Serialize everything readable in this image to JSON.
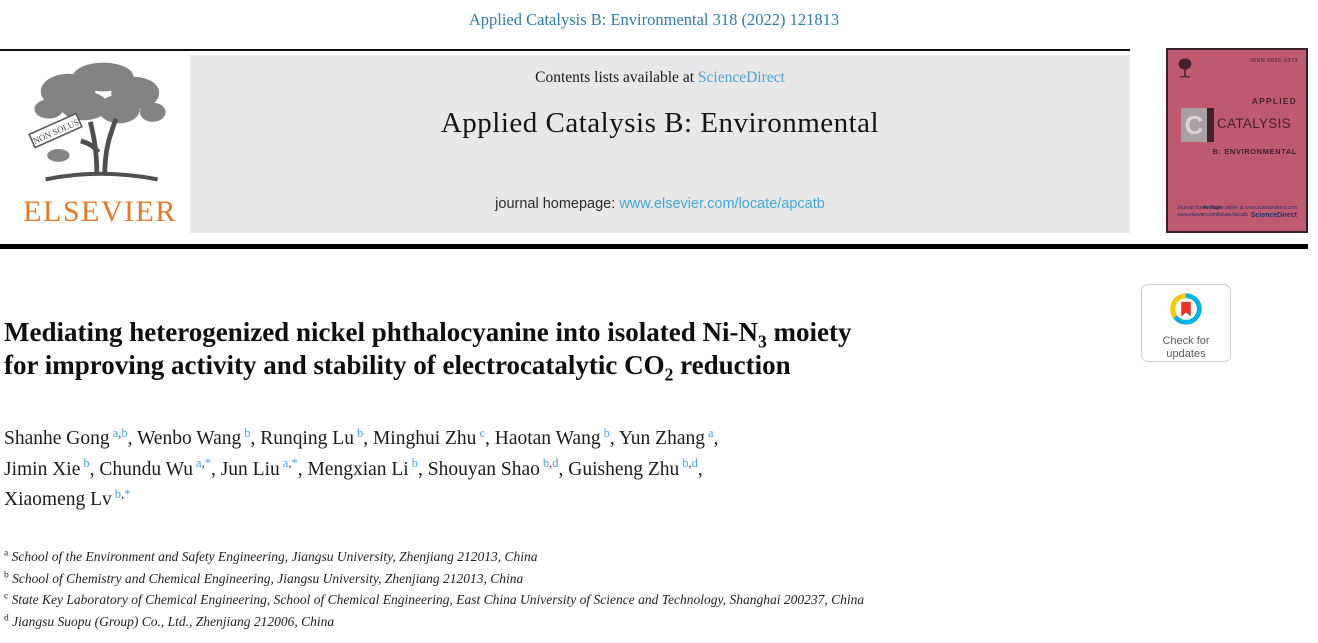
{
  "colors": {
    "citation_teal": "#2e7ea3",
    "link_blue": "#45a5dc",
    "elsevier_orange": "#e87722",
    "cover_bg": "#bf5a71",
    "cover_ink": "#42212c",
    "header_gray": "#e9e8e8",
    "rule_black": "#000000"
  },
  "page": {
    "citation": "Applied Catalysis B: Environmental 318 (2022) 121813"
  },
  "header": {
    "contents_prefix": "Contents lists available at ",
    "sciencedirect_link": "ScienceDirect",
    "journal_title": "Applied Catalysis B: Environmental",
    "homepage_prefix": "journal homepage: ",
    "homepage_url": "www.elsevier.com/locate/apcatb",
    "elsevier_wordmark": "ELSEVIER",
    "logo_banner": "NON SOLUS"
  },
  "cover": {
    "issn": "ISSN 0926-3373",
    "applied": "APPLIED",
    "letter": "C",
    "title": "CATALYSIS",
    "subtitle": "B: ENVIRONMENTAL",
    "homepage_label": "Journal Home Page:",
    "homepage_url": "www.elsevier.com/locate/apcatb",
    "available_online": "Available online at www.sciencedirect.com",
    "sciencedirect": "ScienceDirect"
  },
  "badge": {
    "line1": "Check for",
    "line2": "updates"
  },
  "article": {
    "title_segments": [
      {
        "t": "Mediating heterogenized nickel phthalocyanine into isolated Ni-N"
      },
      {
        "sub": "3"
      },
      {
        "t": " moiety"
      },
      {
        "br": true
      },
      {
        "t": "for improving activity and stability of electrocatalytic CO"
      },
      {
        "sub": "2"
      },
      {
        "t": " reduction"
      }
    ],
    "authors": [
      {
        "name": "Shanhe Gong",
        "sup": "a,b"
      },
      {
        "name": "Wenbo Wang",
        "sup": "b"
      },
      {
        "name": "Runqing Lu",
        "sup": "b"
      },
      {
        "name": "Minghui Zhu",
        "sup": "c"
      },
      {
        "name": "Haotan Wang",
        "sup": "b"
      },
      {
        "name": "Yun Zhang",
        "sup": "a",
        "br": true
      },
      {
        "name": "Jimin Xie",
        "sup": "b"
      },
      {
        "name": "Chundu Wu",
        "sup": "a,*"
      },
      {
        "name": "Jun Liu",
        "sup": "a,*"
      },
      {
        "name": "Mengxian Li",
        "sup": "b"
      },
      {
        "name": "Shouyan Shao",
        "sup": "b,d"
      },
      {
        "name": "Guisheng Zhu",
        "sup": "b,d",
        "br": true
      },
      {
        "name": "Xiaomeng Lv",
        "sup": "b,*"
      }
    ],
    "affiliations": [
      {
        "sup": "a",
        "text": "School of the Environment and Safety Engineering, Jiangsu University, Zhenjiang 212013, China"
      },
      {
        "sup": "b",
        "text": "School of Chemistry and Chemical Engineering, Jiangsu University, Zhenjiang 212013, China"
      },
      {
        "sup": "c",
        "text": "State Key Laboratory of Chemical Engineering, School of Chemical Engineering, East China University of Science and Technology, Shanghai 200237, China"
      },
      {
        "sup": "d",
        "text": "Jiangsu Suopu (Group) Co., Ltd., Zhenjiang 212006, China"
      }
    ]
  }
}
